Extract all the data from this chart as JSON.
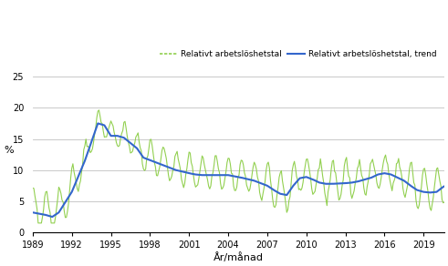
{
  "ylabel": "%",
  "xlabel": "År/månad",
  "ylim": [
    0,
    25
  ],
  "yticks": [
    0,
    5,
    10,
    15,
    20,
    25
  ],
  "xticks_years": [
    1989,
    1992,
    1995,
    1998,
    2001,
    2004,
    2007,
    2010,
    2013,
    2016,
    2019
  ],
  "line_color": "#3366CC",
  "raw_color": "#92D050",
  "legend_label_1": "Relativt arbetslöshetstal",
  "legend_label_2": "Relativt arbetslöshetstal, trend",
  "background_color": "#ffffff",
  "grid_color": "#c0c0c0"
}
